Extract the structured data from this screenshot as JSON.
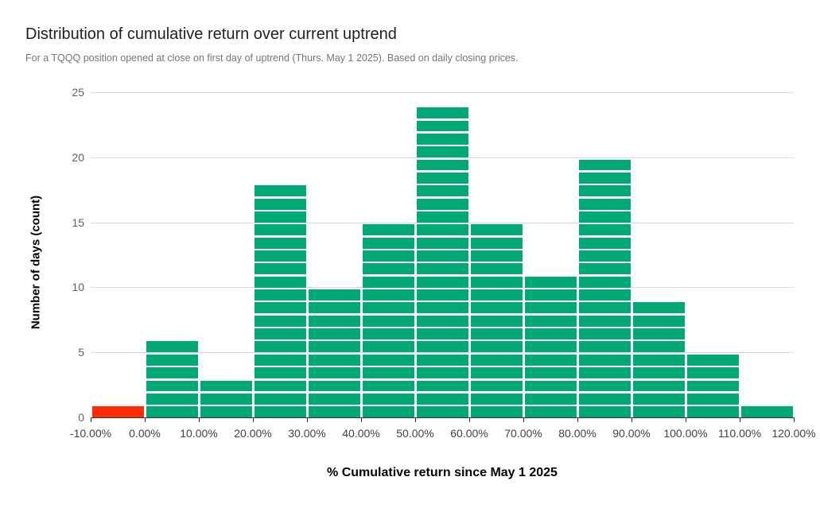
{
  "chart_data": {
    "type": "bar",
    "title": "Distribution of cumulative return over current uptrend",
    "subtitle": "For a TQQQ position opened at close on first day of uptrend (Thurs. May 1 2025). Based on daily closing prices.",
    "xlabel": "% Cumulative return since May 1 2025",
    "ylabel": "Number of days (count)",
    "bin_edges_pct": [
      -10,
      0,
      10,
      20,
      30,
      40,
      50,
      60,
      70,
      80,
      90,
      100,
      110,
      120
    ],
    "x_tick_labels": [
      "-10.00%",
      "0.00%",
      "10.00%",
      "20.00%",
      "30.00%",
      "40.00%",
      "50.00%",
      "60.00%",
      "70.00%",
      "80.00%",
      "90.00%",
      "100.00%",
      "110.00%",
      "120.00%"
    ],
    "values": [
      1,
      6,
      3,
      18,
      10,
      15,
      24,
      15,
      11,
      20,
      9,
      5,
      1
    ],
    "bar_colors": [
      "#FF2B05",
      "#00A878",
      "#00A878",
      "#00A878",
      "#00A878",
      "#00A878",
      "#00A878",
      "#00A878",
      "#00A878",
      "#00A878",
      "#00A878",
      "#00A878",
      "#00A878"
    ],
    "yticks": [
      0,
      5,
      10,
      15,
      20,
      25
    ],
    "ylim": [
      0,
      25
    ],
    "grid": true,
    "legend_position": "none",
    "bar_style": "stacked-unit-blocks"
  },
  "colors": {
    "positive_bar": "#00A878",
    "negative_bar": "#FF2B05",
    "gridline": "#d9d9d9",
    "axis_line": "#333333",
    "title_text": "#212121",
    "subtitle_text": "#757575",
    "y_tick_text": "#616161",
    "x_tick_text": "#424242"
  }
}
